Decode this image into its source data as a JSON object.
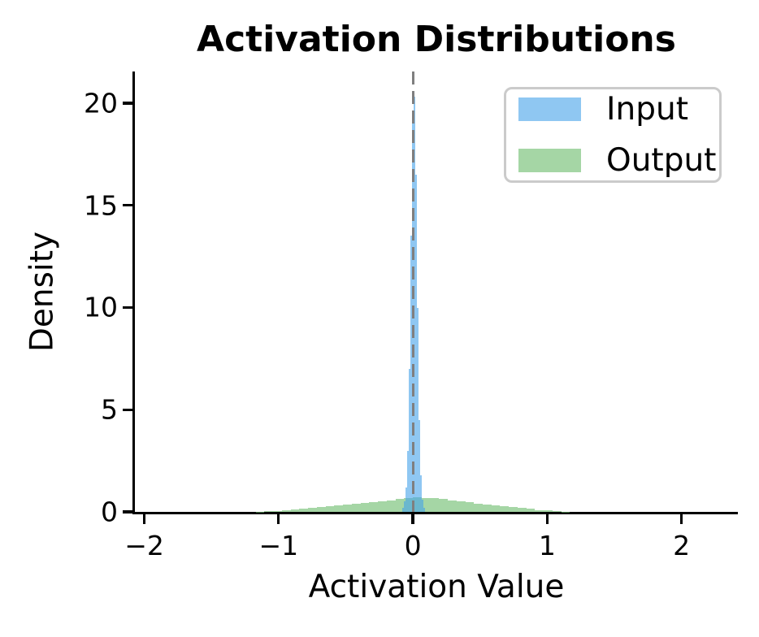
{
  "figure": {
    "title": "Activation Distributions",
    "xlabel": "Activation Value",
    "ylabel": "Density"
  },
  "legend": {
    "items": [
      {
        "label": "Input",
        "color": "#8fc7f2"
      },
      {
        "label": "Output",
        "color": "#a5d6a5"
      }
    ]
  },
  "chart_data": {
    "type": "histogram",
    "title": "Activation Distributions",
    "xlabel": "Activation Value",
    "ylabel": "Density",
    "xlim": [
      -2.07,
      2.42
    ],
    "ylim": [
      0,
      21.55
    ],
    "x_ticks": [
      -2,
      -1,
      0,
      1,
      2
    ],
    "x_tick_labels": [
      "−2",
      "−1",
      "0",
      "1",
      "2"
    ],
    "y_ticks": [
      0,
      5,
      10,
      15,
      20
    ],
    "y_tick_labels": [
      "0",
      "5",
      "10",
      "15",
      "20"
    ],
    "grid": false,
    "legend_position": "upper right",
    "reference_line": {
      "x": 0,
      "style": "dashed",
      "color": "#7f7f7f"
    },
    "series": [
      {
        "name": "Output",
        "fill": "rgba(105,187,105,0.6)",
        "legend_color": "#a5d6a5",
        "bin_start": -1.17,
        "bin_width": 0.065,
        "densities": [
          0.02,
          0.04,
          0.06,
          0.09,
          0.12,
          0.15,
          0.18,
          0.22,
          0.26,
          0.3,
          0.34,
          0.38,
          0.42,
          0.47,
          0.52,
          0.57,
          0.62,
          0.67,
          0.71,
          0.69,
          0.66,
          0.62,
          0.57,
          0.52,
          0.46,
          0.41,
          0.36,
          0.31,
          0.26,
          0.22,
          0.18,
          0.14,
          0.1,
          0.07,
          0.04,
          0.02
        ]
      },
      {
        "name": "Input",
        "fill": "rgba(68,162,233,0.6)",
        "legend_color": "#8fc7f2",
        "bin_start": -0.078,
        "bin_width": 0.012,
        "densities": [
          0.2,
          0.5,
          1.2,
          3.0,
          7.0,
          13.5,
          19.0,
          20.3,
          16.5,
          10.0,
          4.5,
          1.8,
          0.6,
          0.2
        ]
      }
    ]
  }
}
